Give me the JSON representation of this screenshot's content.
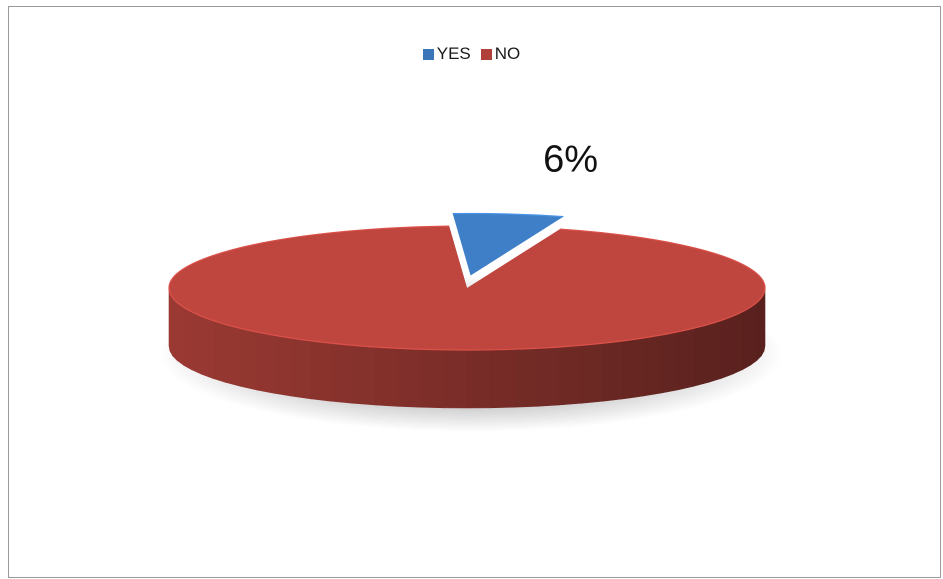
{
  "chart_data": {
    "type": "pie",
    "style": "3d-exploded",
    "title": "",
    "legend_position": "top",
    "slices": [
      {
        "name": "YES",
        "value": 6,
        "label": "6%",
        "color": "#3a76b8",
        "exploded": true
      },
      {
        "name": "NO",
        "value": 94,
        "label": "",
        "color": "#b0413a",
        "exploded": false
      }
    ]
  }
}
